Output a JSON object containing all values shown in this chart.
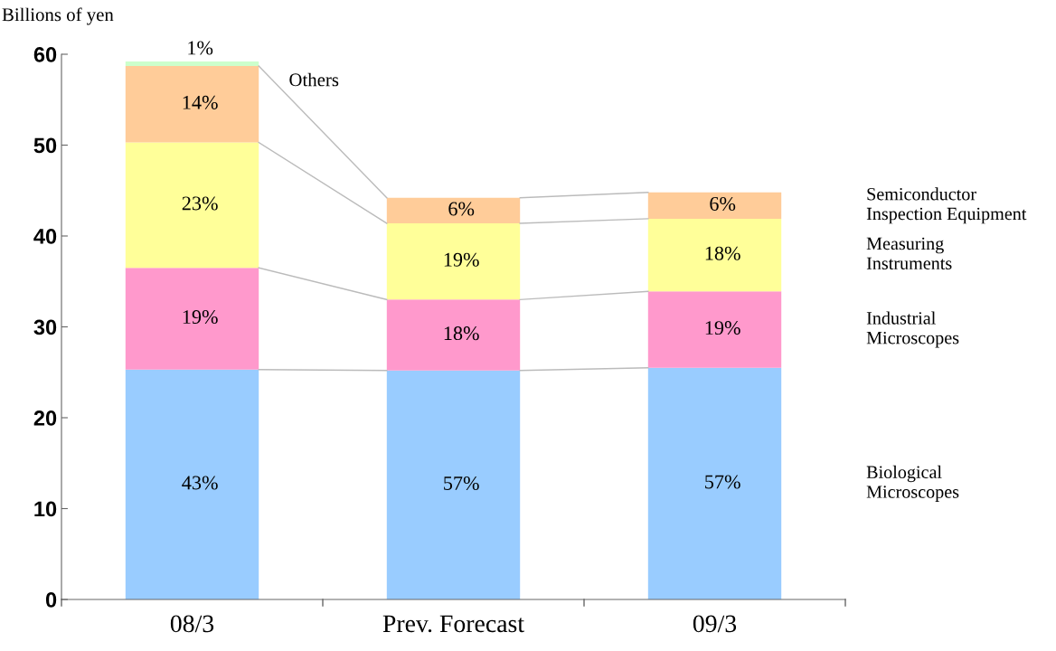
{
  "chart_data": {
    "type": "bar",
    "stacked": true,
    "ylabel": "Billions of yen",
    "categories": [
      "08/3",
      "Prev. Forecast",
      "09/3"
    ],
    "ylim": [
      0,
      60
    ],
    "yticks": [
      0,
      10,
      20,
      30,
      40,
      50,
      60
    ],
    "grid": false,
    "legend": false,
    "series": [
      {
        "name": "Biological\nMicroscopes",
        "color": "#99ccff",
        "values": [
          25.3,
          25.2,
          25.5
        ]
      },
      {
        "name": "Industrial\nMicroscopes",
        "color": "#ff99cc",
        "values": [
          11.2,
          7.8,
          8.4
        ]
      },
      {
        "name": "Measuring\nInstruments",
        "color": "#ffff99",
        "values": [
          13.8,
          8.4,
          8.0
        ]
      },
      {
        "name": "Semiconductor\nInspection Equipment",
        "color": "#ffcc99",
        "values": [
          8.4,
          2.8,
          2.9
        ]
      },
      {
        "name": "Others",
        "color": "#ccffcc",
        "values": [
          0.5,
          null,
          null
        ]
      }
    ],
    "annotations": [
      "43%",
      "57%",
      "57%",
      "19%",
      "18%",
      "19%",
      "23%",
      "19%",
      "18%",
      "14%",
      "6%",
      "6%",
      "1%"
    ]
  }
}
